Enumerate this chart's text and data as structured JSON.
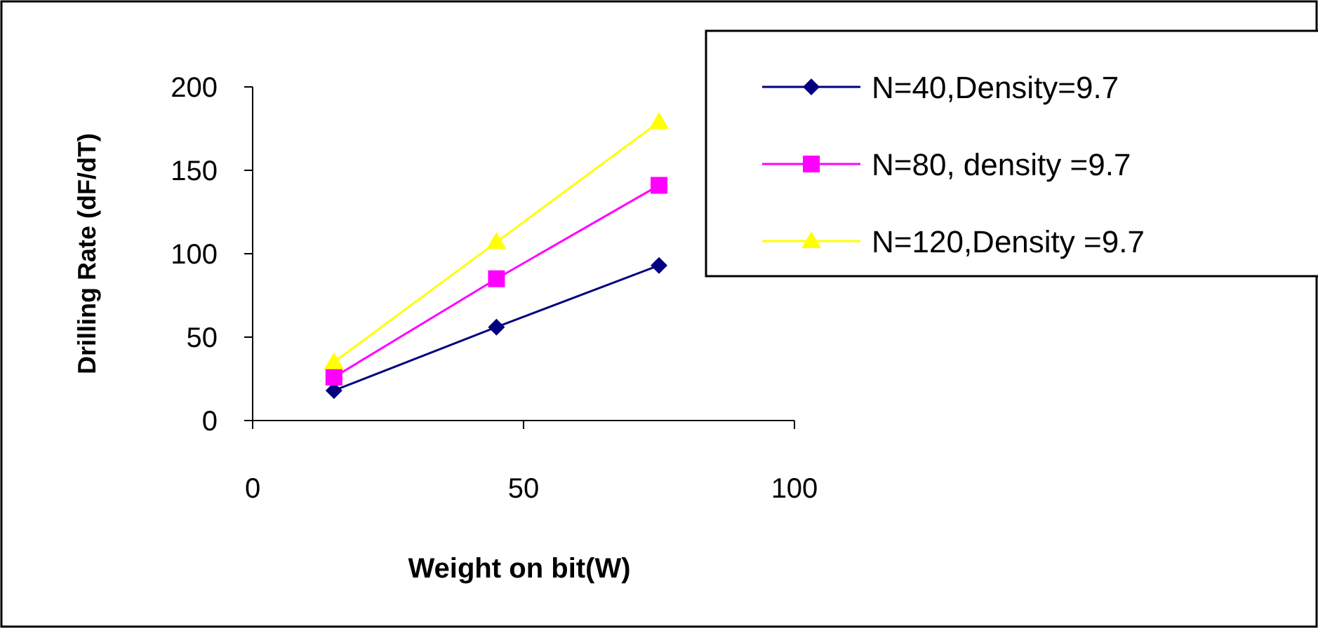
{
  "chart_data": {
    "type": "line",
    "xlabel": "Weight on bit(W)",
    "ylabel": "Drilling Rate (dF/dT)",
    "x": [
      15,
      45,
      75
    ],
    "series": [
      {
        "name": "N=40,Density=9.7",
        "color": "#000080",
        "marker": "diamond",
        "values": [
          18,
          56,
          93
        ]
      },
      {
        "name": "N=80, density =9.7",
        "color": "#ff00ff",
        "marker": "square",
        "values": [
          26,
          85,
          141
        ]
      },
      {
        "name": "N=120,Density =9.7",
        "color": "#ffff00",
        "marker": "triangle",
        "values": [
          35,
          107,
          179
        ]
      }
    ],
    "xlim": [
      0,
      100
    ],
    "xticks": [
      0,
      50,
      100
    ],
    "ylim": [
      0,
      200
    ],
    "yticks": [
      0,
      50,
      100,
      150,
      200
    ],
    "grid": false,
    "legend": "top right"
  }
}
